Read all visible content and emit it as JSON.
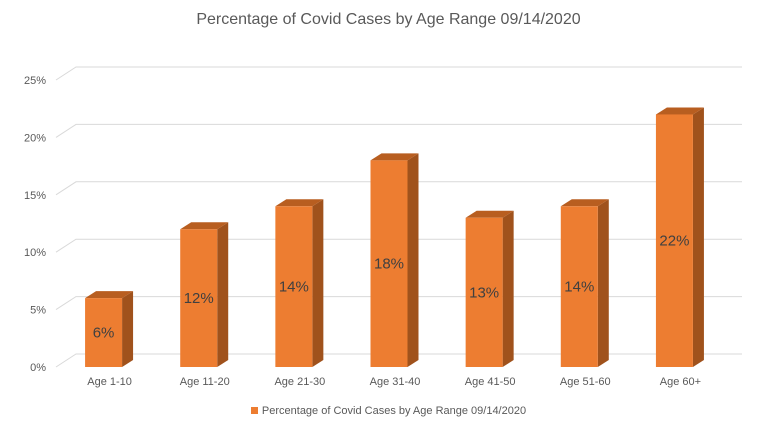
{
  "chart_data": {
    "type": "bar",
    "title": "Percentage of Covid Cases by Age Range 09/14/2020",
    "categories": [
      "Age 1-10",
      "Age 11-20",
      "Age 21-30",
      "Age 31-40",
      "Age 41-50",
      "Age 51-60",
      "Age 60+"
    ],
    "series": [
      {
        "name": "Percentage of Covid Cases by Age Range 09/14/2020",
        "values": [
          6,
          12,
          14,
          18,
          13,
          14,
          22
        ],
        "data_labels": [
          "6%",
          "12%",
          "14%",
          "18%",
          "13%",
          "14%",
          "22%"
        ],
        "color": "#ED7D31"
      }
    ],
    "y_ticks": [
      "0%",
      "5%",
      "10%",
      "15%",
      "20%",
      "25%"
    ],
    "ylim": [
      0,
      25
    ],
    "grid": true,
    "legend_position": "bottom",
    "style": "3d-column"
  }
}
